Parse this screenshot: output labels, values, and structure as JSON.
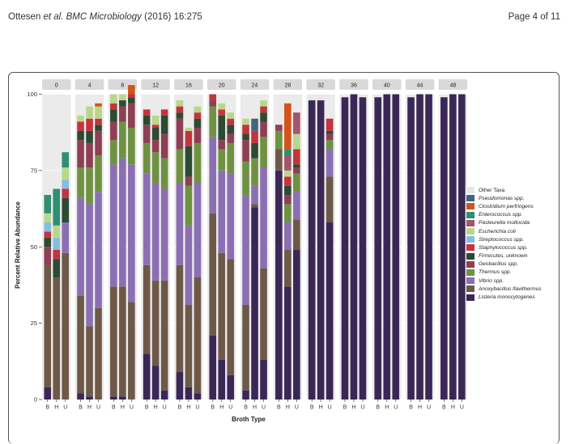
{
  "header": {
    "authors": "Ottesen",
    "etal": "et al.",
    "journal": "BMC Microbiology",
    "citation": "(2016) 16:275",
    "page": "Page 4 of 11"
  },
  "chart_data": {
    "type": "bar",
    "stacked": true,
    "facet_by": "Time",
    "facets": [
      "0",
      "4",
      "8",
      "12",
      "16",
      "20",
      "24",
      "28",
      "32",
      "36",
      "40",
      "44",
      "48"
    ],
    "categories": [
      "B",
      "H",
      "U"
    ],
    "xlabel": "Broth Type",
    "ylabel": "Percent Relative Abundance",
    "ylim": [
      0,
      100
    ],
    "yticks": [
      0,
      25,
      50,
      75,
      100
    ],
    "legend_position": "right",
    "series": [
      {
        "name": "Other Taxa",
        "color": "#e6e6e6"
      },
      {
        "name": "Pseudomonas spp.",
        "color": "#42647f"
      },
      {
        "name": "Clostridium perfringens",
        "color": "#d3531a"
      },
      {
        "name": "Enterococcus spp.",
        "color": "#2f8f72"
      },
      {
        "name": "Pasteurella multocida",
        "color": "#a2556b"
      },
      {
        "name": "Escherichia coli",
        "color": "#b9d78b"
      },
      {
        "name": "Streptococcus spp.",
        "color": "#85bde0"
      },
      {
        "name": "Staphylococcus spp.",
        "color": "#c3343c"
      },
      {
        "name": "Firmicutes, unknown",
        "color": "#2d4a33"
      },
      {
        "name": "Geobacillus spp.",
        "color": "#8e3f54"
      },
      {
        "name": "Thermus spp.",
        "color": "#6f9142"
      },
      {
        "name": "Vibrio spp.",
        "color": "#8b6fb3"
      },
      {
        "name": "Anoxybacillus flavithermus",
        "color": "#6e5848"
      },
      {
        "name": "Listeria monocytogenes",
        "color": "#3a2756"
      }
    ],
    "stacks": [
      [
        [
          4,
          40,
          0,
          0,
          6,
          3,
          2,
          3,
          3,
          0,
          6,
          0,
          0,
          0
        ],
        [
          0,
          40,
          0,
          0,
          0,
          6,
          3,
          4,
          4,
          0,
          12,
          0,
          0,
          0
        ],
        [
          0,
          48,
          10,
          0,
          0,
          8,
          3,
          3,
          4,
          0,
          5,
          0,
          0,
          0
        ]
      ],
      [
        [
          2,
          32,
          32,
          10,
          9,
          3,
          3,
          0,
          2,
          0,
          0,
          0,
          0,
          0
        ],
        [
          1,
          23,
          40,
          12,
          8,
          4,
          4,
          0,
          4,
          0,
          0,
          0,
          0,
          0
        ],
        [
          0,
          30,
          38,
          12,
          8,
          2,
          2,
          0,
          4,
          0,
          0,
          1,
          0,
          0
        ]
      ],
      [
        [
          1,
          36,
          40,
          8,
          6,
          4,
          2,
          0,
          3,
          0,
          0,
          0,
          0,
          0
        ],
        [
          1,
          36,
          42,
          12,
          5,
          2,
          0,
          0,
          2,
          0,
          0,
          0,
          0,
          0
        ],
        [
          0,
          32,
          45,
          12,
          8,
          2,
          1,
          0,
          0,
          0,
          0,
          3,
          0,
          0
        ]
      ],
      [
        [
          15,
          29,
          30,
          10,
          6,
          3,
          2,
          0,
          0,
          0,
          0,
          0,
          0,
          0
        ],
        [
          11,
          28,
          32,
          10,
          4,
          4,
          1,
          0,
          3,
          0,
          0,
          0,
          0,
          0
        ],
        [
          3,
          36,
          30,
          10,
          8,
          6,
          2,
          0,
          0,
          0,
          0,
          0,
          0,
          0
        ]
      ],
      [
        [
          9,
          35,
          27,
          11,
          10,
          2,
          2,
          0,
          2,
          0,
          0,
          0,
          0,
          0
        ],
        [
          4,
          27,
          26,
          13,
          3,
          10,
          5,
          0,
          1,
          0,
          0,
          0,
          0,
          0
        ],
        [
          2,
          38,
          31,
          13,
          5,
          3,
          2,
          0,
          2,
          0,
          0,
          0,
          0,
          0
        ]
      ],
      [
        [
          21,
          40,
          25,
          10,
          2,
          0,
          2,
          0,
          0,
          0,
          0,
          0,
          0,
          0
        ],
        [
          13,
          35,
          27,
          7,
          3,
          8,
          2,
          0,
          2,
          0,
          0,
          0,
          0,
          0
        ],
        [
          8,
          38,
          28,
          10,
          3,
          3,
          2,
          0,
          2,
          0,
          0,
          0,
          0,
          0
        ]
      ],
      [
        [
          3,
          28,
          36,
          11,
          7,
          2,
          3,
          0,
          2,
          0,
          0,
          0,
          0,
          0
        ],
        [
          63,
          1,
          6,
          9,
          0,
          5,
          4,
          0,
          0,
          0,
          0,
          0,
          4,
          0
        ],
        [
          13,
          30,
          33,
          10,
          5,
          3,
          2,
          0,
          2,
          0,
          0,
          0,
          0,
          0
        ]
      ],
      [
        [
          75,
          7,
          0,
          6,
          2,
          0,
          0,
          0,
          0,
          0,
          0,
          0,
          0,
          0
        ],
        [
          37,
          12,
          9,
          6,
          3,
          3,
          3,
          0,
          2,
          5,
          2,
          15,
          0,
          0
        ],
        [
          49,
          10,
          9,
          6,
          2,
          1,
          5,
          0,
          5,
          7,
          0,
          0,
          0,
          0
        ]
      ],
      [
        [
          98,
          0,
          0,
          0,
          0,
          0,
          0,
          0,
          0,
          0,
          0,
          0,
          0,
          1
        ],
        [
          98,
          0,
          0,
          0,
          0,
          0,
          0,
          0,
          0,
          0,
          0,
          0,
          0,
          1
        ],
        [
          58,
          15,
          9,
          3,
          2,
          1,
          4,
          0,
          0,
          0,
          0,
          0,
          0,
          0
        ]
      ],
      [
        [
          99,
          0,
          0,
          0,
          0,
          0,
          0,
          0,
          0,
          0,
          0,
          0,
          0,
          0
        ],
        [
          100,
          0,
          0,
          0,
          0,
          0,
          0,
          0,
          0,
          0,
          0,
          0,
          0,
          0
        ],
        [
          99,
          0,
          0,
          0,
          0,
          0,
          0,
          0,
          0,
          0,
          0,
          0,
          0,
          0
        ]
      ],
      [
        [
          99,
          0,
          0,
          0,
          0,
          0,
          0,
          0,
          0,
          0,
          0,
          0,
          0,
          0
        ],
        [
          100,
          0,
          0,
          0,
          0,
          0,
          0,
          0,
          0,
          0,
          0,
          0,
          0,
          0
        ],
        [
          100,
          0,
          0,
          0,
          0,
          0,
          0,
          0,
          0,
          0,
          0,
          0,
          0,
          0
        ]
      ],
      [
        [
          99,
          0,
          0,
          0,
          0,
          0,
          0,
          0,
          0,
          0,
          0,
          0,
          0,
          0
        ],
        [
          100,
          0,
          0,
          0,
          0,
          0,
          0,
          0,
          0,
          0,
          0,
          0,
          0,
          0
        ],
        [
          100,
          0,
          0,
          0,
          0,
          0,
          0,
          0,
          0,
          0,
          0,
          0,
          0,
          0
        ]
      ],
      [
        [
          99,
          0,
          0,
          0,
          0,
          0,
          0,
          0,
          0,
          0,
          0,
          0,
          0,
          0
        ],
        [
          100,
          0,
          0,
          0,
          0,
          0,
          0,
          0,
          0,
          0,
          0,
          0,
          0,
          0
        ],
        [
          100,
          0,
          0,
          0,
          0,
          0,
          0,
          0,
          0,
          0,
          0,
          0,
          0,
          0
        ]
      ]
    ]
  }
}
